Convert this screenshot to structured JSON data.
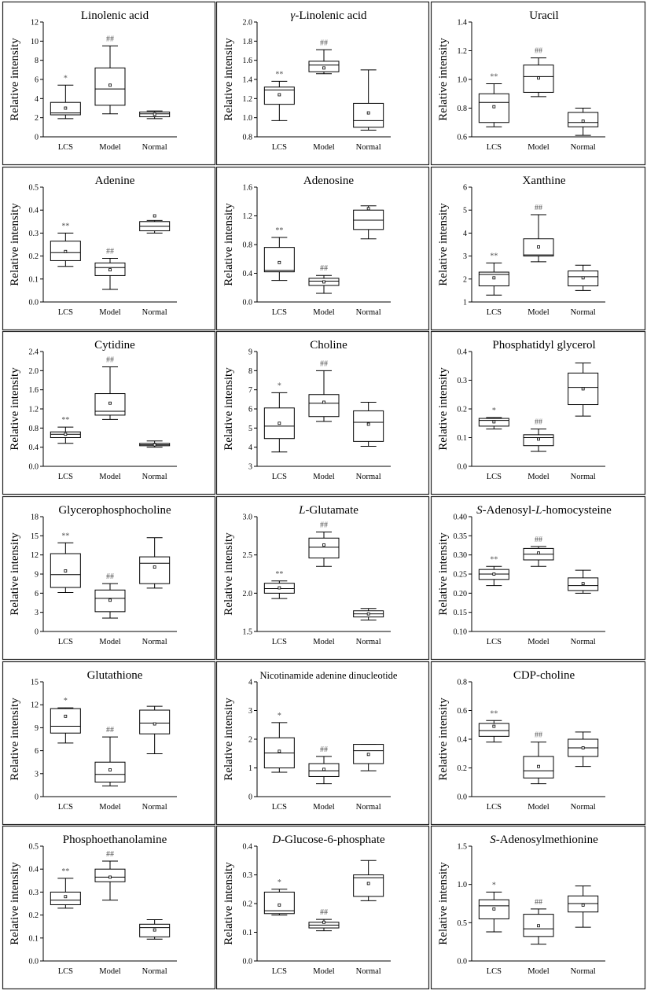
{
  "figure": {
    "ylabel": "Relative intensity",
    "groups": [
      "LCS",
      "Model",
      "Normal"
    ]
  },
  "chart_data": [
    {
      "type": "box",
      "title": "Linolenic acid",
      "title_parts": [
        {
          "t": "Linolenic acid"
        }
      ],
      "ylabel": "Relative intensity",
      "ylim": [
        0,
        12
      ],
      "yticks": [
        0,
        2,
        4,
        6,
        8,
        10,
        12
      ],
      "categories": [
        "LCS",
        "Model",
        "Normal"
      ],
      "boxes": [
        {
          "min": 1.9,
          "q1": 2.3,
          "median": 2.5,
          "q3": 3.6,
          "max": 5.4,
          "mean": 3.0,
          "marker": "*"
        },
        {
          "min": 2.4,
          "q1": 3.3,
          "median": 5.0,
          "q3": 7.2,
          "max": 9.5,
          "mean": 5.4,
          "marker": "##"
        },
        {
          "min": 1.9,
          "q1": 2.1,
          "median": 2.4,
          "q3": 2.6,
          "max": 2.7,
          "mean": 2.35,
          "marker": ""
        }
      ]
    },
    {
      "type": "box",
      "title": "γ-Linolenic acid",
      "title_parts": [
        {
          "t": "γ",
          "i": true
        },
        {
          "t": "-Linolenic acid"
        }
      ],
      "ylabel": "Relative intensity",
      "ylim": [
        0.8,
        2.0
      ],
      "yticks": [
        "0.8",
        "1.0",
        "1.2",
        "1.4",
        "1.6",
        "1.8",
        "2.0"
      ],
      "categories": [
        "LCS",
        "Model",
        "Normal"
      ],
      "boxes": [
        {
          "min": 0.97,
          "q1": 1.14,
          "median": 1.29,
          "q3": 1.32,
          "max": 1.38,
          "mean": 1.24,
          "marker": "**"
        },
        {
          "min": 1.46,
          "q1": 1.48,
          "median": 1.55,
          "q3": 1.59,
          "max": 1.71,
          "mean": 1.52,
          "marker": "##"
        },
        {
          "min": 0.87,
          "q1": 0.9,
          "median": 0.97,
          "q3": 1.15,
          "max": 1.5,
          "mean": 1.05,
          "marker": ""
        }
      ]
    },
    {
      "type": "box",
      "title": "Uracil",
      "title_parts": [
        {
          "t": "Uracil"
        }
      ],
      "ylabel": "Relative intensity",
      "ylim": [
        0.6,
        1.4
      ],
      "yticks": [
        "0.6",
        "0.8",
        "1.0",
        "1.2",
        "1.4"
      ],
      "categories": [
        "LCS",
        "Model",
        "Normal"
      ],
      "boxes": [
        {
          "min": 0.67,
          "q1": 0.7,
          "median": 0.84,
          "q3": 0.9,
          "max": 0.97,
          "mean": 0.81,
          "marker": "**"
        },
        {
          "min": 0.88,
          "q1": 0.91,
          "median": 1.02,
          "q3": 1.1,
          "max": 1.15,
          "mean": 1.01,
          "marker": "##"
        },
        {
          "min": 0.61,
          "q1": 0.67,
          "median": 0.7,
          "q3": 0.77,
          "max": 0.8,
          "mean": 0.71,
          "marker": ""
        }
      ]
    },
    {
      "type": "box",
      "title": "Adenine",
      "title_parts": [
        {
          "t": "Adenine"
        }
      ],
      "ylabel": "Relative intensity",
      "ylim": [
        0,
        0.5
      ],
      "yticks": [
        "0.0",
        "0.1",
        "0.2",
        "0.3",
        "0.4",
        "0.5"
      ],
      "categories": [
        "LCS",
        "Model",
        "Normal"
      ],
      "boxes": [
        {
          "min": 0.155,
          "q1": 0.18,
          "median": 0.215,
          "q3": 0.265,
          "max": 0.3,
          "mean": 0.22,
          "marker": "**"
        },
        {
          "min": 0.055,
          "q1": 0.115,
          "median": 0.15,
          "q3": 0.17,
          "max": 0.19,
          "mean": 0.14,
          "marker": "##"
        },
        {
          "min": 0.3,
          "q1": 0.31,
          "median": 0.33,
          "q3": 0.35,
          "max": 0.355,
          "mean": 0.375,
          "marker": ""
        }
      ]
    },
    {
      "type": "box",
      "title": "Adenosine",
      "title_parts": [
        {
          "t": "Adenosine"
        }
      ],
      "ylabel": "Relative intensity",
      "ylim": [
        0,
        1.6
      ],
      "yticks": [
        "0.0",
        "0.4",
        "0.8",
        "1.2",
        "1.6"
      ],
      "categories": [
        "LCS",
        "Model",
        "Normal"
      ],
      "boxes": [
        {
          "min": 0.3,
          "q1": 0.42,
          "median": 0.44,
          "q3": 0.76,
          "max": 0.9,
          "mean": 0.55,
          "marker": "**"
        },
        {
          "min": 0.12,
          "q1": 0.23,
          "median": 0.29,
          "q3": 0.33,
          "max": 0.37,
          "mean": 0.28,
          "marker": "##"
        },
        {
          "min": 0.88,
          "q1": 1.01,
          "median": 1.14,
          "q3": 1.28,
          "max": 1.34,
          "mean": 1.3,
          "marker": ""
        }
      ]
    },
    {
      "type": "box",
      "title": "Xanthine",
      "title_parts": [
        {
          "t": "Xanthine"
        }
      ],
      "ylabel": "Relative intensity",
      "ylim": [
        1,
        6
      ],
      "yticks": [
        1,
        2,
        3,
        4,
        5,
        6
      ],
      "categories": [
        "LCS",
        "Model",
        "Normal"
      ],
      "boxes": [
        {
          "min": 1.3,
          "q1": 1.7,
          "median": 2.2,
          "q3": 2.3,
          "max": 2.7,
          "mean": 2.05,
          "marker": "**"
        },
        {
          "min": 2.75,
          "q1": 3.0,
          "median": 3.05,
          "q3": 3.75,
          "max": 4.8,
          "mean": 3.4,
          "marker": "##"
        },
        {
          "min": 1.5,
          "q1": 1.7,
          "median": 2.1,
          "q3": 2.35,
          "max": 2.6,
          "mean": 2.05,
          "marker": ""
        }
      ]
    },
    {
      "type": "box",
      "title": "Cytidine",
      "title_parts": [
        {
          "t": "Cytidine"
        }
      ],
      "ylabel": "Relative intensity",
      "ylim": [
        0,
        2.4
      ],
      "yticks": [
        "0.0",
        "0.4",
        "0.8",
        "1.2",
        "1.6",
        "2.0",
        "2.4"
      ],
      "categories": [
        "LCS",
        "Model",
        "Normal"
      ],
      "boxes": [
        {
          "min": 0.48,
          "q1": 0.6,
          "median": 0.67,
          "q3": 0.72,
          "max": 0.82,
          "mean": 0.67,
          "marker": "**"
        },
        {
          "min": 0.98,
          "q1": 1.07,
          "median": 1.15,
          "q3": 1.52,
          "max": 2.08,
          "mean": 1.32,
          "marker": "##"
        },
        {
          "min": 0.4,
          "q1": 0.43,
          "median": 0.45,
          "q3": 0.48,
          "max": 0.53,
          "mean": 0.45,
          "marker": ""
        }
      ]
    },
    {
      "type": "box",
      "title": "Choline",
      "title_parts": [
        {
          "t": "Choline"
        }
      ],
      "ylabel": "Relative intensity",
      "ylim": [
        3,
        9
      ],
      "yticks": [
        3,
        4,
        5,
        6,
        7,
        8,
        9
      ],
      "categories": [
        "LCS",
        "Model",
        "Normal"
      ],
      "boxes": [
        {
          "min": 3.75,
          "q1": 4.45,
          "median": 5.1,
          "q3": 6.05,
          "max": 6.85,
          "mean": 5.25,
          "marker": "*"
        },
        {
          "min": 5.35,
          "q1": 5.6,
          "median": 6.3,
          "q3": 6.75,
          "max": 8.0,
          "mean": 6.35,
          "marker": "##"
        },
        {
          "min": 4.05,
          "q1": 4.3,
          "median": 5.3,
          "q3": 5.9,
          "max": 6.35,
          "mean": 5.2,
          "marker": ""
        }
      ]
    },
    {
      "type": "box",
      "title": "Phosphatidyl glycerol",
      "title_parts": [
        {
          "t": "Phosphatidyl glycerol"
        }
      ],
      "ylabel": "Relative intensity",
      "ylim": [
        0,
        0.4
      ],
      "yticks": [
        "0.0",
        "0.1",
        "0.2",
        "0.3",
        "0.4"
      ],
      "categories": [
        "LCS",
        "Model",
        "Normal"
      ],
      "boxes": [
        {
          "min": 0.13,
          "q1": 0.14,
          "median": 0.16,
          "q3": 0.167,
          "max": 0.17,
          "mean": 0.155,
          "marker": "*"
        },
        {
          "min": 0.052,
          "q1": 0.072,
          "median": 0.1,
          "q3": 0.11,
          "max": 0.13,
          "mean": 0.095,
          "marker": "##"
        },
        {
          "min": 0.175,
          "q1": 0.215,
          "median": 0.275,
          "q3": 0.325,
          "max": 0.36,
          "mean": 0.27,
          "marker": ""
        }
      ]
    },
    {
      "type": "box",
      "title": "Glycerophosphocholine",
      "title_parts": [
        {
          "t": "Glycerophosphocholine"
        }
      ],
      "ylabel": "Relative intensity",
      "ylim": [
        0,
        18
      ],
      "yticks": [
        0,
        3,
        6,
        9,
        12,
        15,
        18
      ],
      "categories": [
        "LCS",
        "Model",
        "Normal"
      ],
      "boxes": [
        {
          "min": 6.1,
          "q1": 6.9,
          "median": 8.9,
          "q3": 12.2,
          "max": 13.9,
          "mean": 9.5,
          "marker": "**"
        },
        {
          "min": 2.1,
          "q1": 3.1,
          "median": 5.2,
          "q3": 6.5,
          "max": 7.5,
          "mean": 4.9,
          "marker": "##"
        },
        {
          "min": 6.8,
          "q1": 7.5,
          "median": 10.7,
          "q3": 11.7,
          "max": 14.7,
          "mean": 10.1,
          "marker": ""
        }
      ]
    },
    {
      "type": "box",
      "title": "L-Glutamate",
      "title_parts": [
        {
          "t": "L",
          "i": true
        },
        {
          "t": "-Glutamate"
        }
      ],
      "ylabel": "Relative intensity",
      "ylim": [
        1.5,
        3.0
      ],
      "yticks": [
        "1.5",
        "2.0",
        "2.5",
        "3.0"
      ],
      "categories": [
        "LCS",
        "Model",
        "Normal"
      ],
      "boxes": [
        {
          "min": 1.93,
          "q1": 2.0,
          "median": 2.06,
          "q3": 2.13,
          "max": 2.16,
          "mean": 2.07,
          "marker": "**"
        },
        {
          "min": 2.35,
          "q1": 2.46,
          "median": 2.6,
          "q3": 2.72,
          "max": 2.8,
          "mean": 2.63,
          "marker": "##"
        },
        {
          "min": 1.65,
          "q1": 1.69,
          "median": 1.73,
          "q3": 1.77,
          "max": 1.8,
          "mean": 1.73,
          "marker": ""
        }
      ]
    },
    {
      "type": "box",
      "title": "S-Adenosyl-L-homocysteine",
      "title_parts": [
        {
          "t": "S",
          "i": true
        },
        {
          "t": "-Adenosyl-"
        },
        {
          "t": "L",
          "i": true
        },
        {
          "t": "-homocysteine"
        }
      ],
      "ylabel": "Relative intensity",
      "ylim": [
        0.1,
        0.4
      ],
      "yticks": [
        "0.10",
        "0.15",
        "0.20",
        "0.25",
        "0.30",
        "0.35",
        "0.40"
      ],
      "categories": [
        "LCS",
        "Model",
        "Normal"
      ],
      "boxes": [
        {
          "min": 0.22,
          "q1": 0.236,
          "median": 0.25,
          "q3": 0.262,
          "max": 0.27,
          "mean": 0.25,
          "marker": "**"
        },
        {
          "min": 0.27,
          "q1": 0.287,
          "median": 0.302,
          "q3": 0.317,
          "max": 0.322,
          "mean": 0.305,
          "marker": "##"
        },
        {
          "min": 0.2,
          "q1": 0.207,
          "median": 0.22,
          "q3": 0.24,
          "max": 0.26,
          "mean": 0.225,
          "marker": ""
        }
      ]
    },
    {
      "type": "box",
      "title": "Glutathione",
      "title_parts": [
        {
          "t": "Glutathione"
        }
      ],
      "ylabel": "Relative intensity",
      "ylim": [
        0,
        15
      ],
      "yticks": [
        0,
        3,
        6,
        9,
        12,
        15
      ],
      "categories": [
        "LCS",
        "Model",
        "Normal"
      ],
      "boxes": [
        {
          "min": 7.0,
          "q1": 8.3,
          "median": 9.2,
          "q3": 11.5,
          "max": 11.6,
          "mean": 10.5,
          "marker": "*"
        },
        {
          "min": 1.4,
          "q1": 1.9,
          "median": 2.9,
          "q3": 4.5,
          "max": 7.8,
          "mean": 3.5,
          "marker": "##"
        },
        {
          "min": 5.6,
          "q1": 8.2,
          "median": 9.6,
          "q3": 11.3,
          "max": 11.8,
          "mean": 9.5,
          "marker": ""
        }
      ]
    },
    {
      "type": "box",
      "title": "Nicotinamide adenine dinucleotide",
      "title_parts": [
        {
          "t": "Nicotinamide adenine dinucleotide"
        }
      ],
      "ylabel": "Relative intensity",
      "ylim": [
        0,
        4
      ],
      "yticks": [
        0,
        1,
        2,
        3,
        4
      ],
      "categories": [
        "LCS",
        "Model",
        "Normal"
      ],
      "boxes": [
        {
          "min": 0.85,
          "q1": 1.0,
          "median": 1.52,
          "q3": 2.05,
          "max": 2.58,
          "mean": 1.58,
          "marker": "*"
        },
        {
          "min": 0.45,
          "q1": 0.7,
          "median": 0.9,
          "q3": 1.15,
          "max": 1.4,
          "mean": 0.95,
          "marker": "##"
        },
        {
          "min": 0.9,
          "q1": 1.15,
          "median": 1.6,
          "q3": 1.82,
          "max": 1.82,
          "mean": 1.47,
          "marker": ""
        }
      ]
    },
    {
      "type": "box",
      "title": "CDP-choline",
      "title_parts": [
        {
          "t": "CDP-choline"
        }
      ],
      "ylabel": "Relative intensity",
      "ylim": [
        0,
        0.8
      ],
      "yticks": [
        "0.0",
        "0.2",
        "0.4",
        "0.6",
        "0.8"
      ],
      "categories": [
        "LCS",
        "Model",
        "Normal"
      ],
      "boxes": [
        {
          "min": 0.38,
          "q1": 0.42,
          "median": 0.46,
          "q3": 0.51,
          "max": 0.53,
          "mean": 0.49,
          "marker": "**"
        },
        {
          "min": 0.09,
          "q1": 0.13,
          "median": 0.18,
          "q3": 0.28,
          "max": 0.38,
          "mean": 0.21,
          "marker": "##"
        },
        {
          "min": 0.21,
          "q1": 0.28,
          "median": 0.34,
          "q3": 0.4,
          "max": 0.45,
          "mean": 0.34,
          "marker": ""
        }
      ]
    },
    {
      "type": "box",
      "title": "Phosphoethanolamine",
      "title_parts": [
        {
          "t": "Phosphoethanolamine"
        }
      ],
      "ylabel": "Relative intensity",
      "ylim": [
        0,
        0.5
      ],
      "yticks": [
        "0.0",
        "0.1",
        "0.2",
        "0.3",
        "0.4",
        "0.5"
      ],
      "categories": [
        "LCS",
        "Model",
        "Normal"
      ],
      "boxes": [
        {
          "min": 0.23,
          "q1": 0.245,
          "median": 0.265,
          "q3": 0.3,
          "max": 0.36,
          "mean": 0.28,
          "marker": "**"
        },
        {
          "min": 0.265,
          "q1": 0.345,
          "median": 0.365,
          "q3": 0.4,
          "max": 0.435,
          "mean": 0.365,
          "marker": "##"
        },
        {
          "min": 0.095,
          "q1": 0.105,
          "median": 0.145,
          "q3": 0.16,
          "max": 0.18,
          "mean": 0.135,
          "marker": ""
        }
      ]
    },
    {
      "type": "box",
      "title": "D-Glucose-6-phosphate",
      "title_parts": [
        {
          "t": "D",
          "i": true
        },
        {
          "t": "-Glucose-6-phosphate"
        }
      ],
      "ylabel": "Relative intensity",
      "ylim": [
        0,
        0.4
      ],
      "yticks": [
        "0.0",
        "0.1",
        "0.2",
        "0.3",
        "0.4"
      ],
      "categories": [
        "LCS",
        "Model",
        "Normal"
      ],
      "boxes": [
        {
          "min": 0.16,
          "q1": 0.165,
          "median": 0.175,
          "q3": 0.24,
          "max": 0.25,
          "mean": 0.195,
          "marker": "*"
        },
        {
          "min": 0.105,
          "q1": 0.115,
          "median": 0.125,
          "q3": 0.135,
          "max": 0.145,
          "mean": 0.135,
          "marker": "##"
        },
        {
          "min": 0.21,
          "q1": 0.225,
          "median": 0.29,
          "q3": 0.3,
          "max": 0.35,
          "mean": 0.27,
          "marker": ""
        }
      ]
    },
    {
      "type": "box",
      "title": "S-Adenosylmethionine",
      "title_parts": [
        {
          "t": "S",
          "i": true
        },
        {
          "t": "-Adenosylmethionine"
        }
      ],
      "ylabel": "Relative intensity",
      "ylim": [
        0,
        1.5
      ],
      "yticks": [
        "0.0",
        "0.5",
        "1.0",
        "1.5"
      ],
      "categories": [
        "LCS",
        "Model",
        "Normal"
      ],
      "boxes": [
        {
          "min": 0.38,
          "q1": 0.55,
          "median": 0.72,
          "q3": 0.8,
          "max": 0.9,
          "mean": 0.68,
          "marker": "*"
        },
        {
          "min": 0.22,
          "q1": 0.32,
          "median": 0.42,
          "q3": 0.61,
          "max": 0.68,
          "mean": 0.46,
          "marker": "##"
        },
        {
          "min": 0.44,
          "q1": 0.64,
          "median": 0.75,
          "q3": 0.85,
          "max": 0.98,
          "mean": 0.73,
          "marker": ""
        }
      ]
    }
  ]
}
